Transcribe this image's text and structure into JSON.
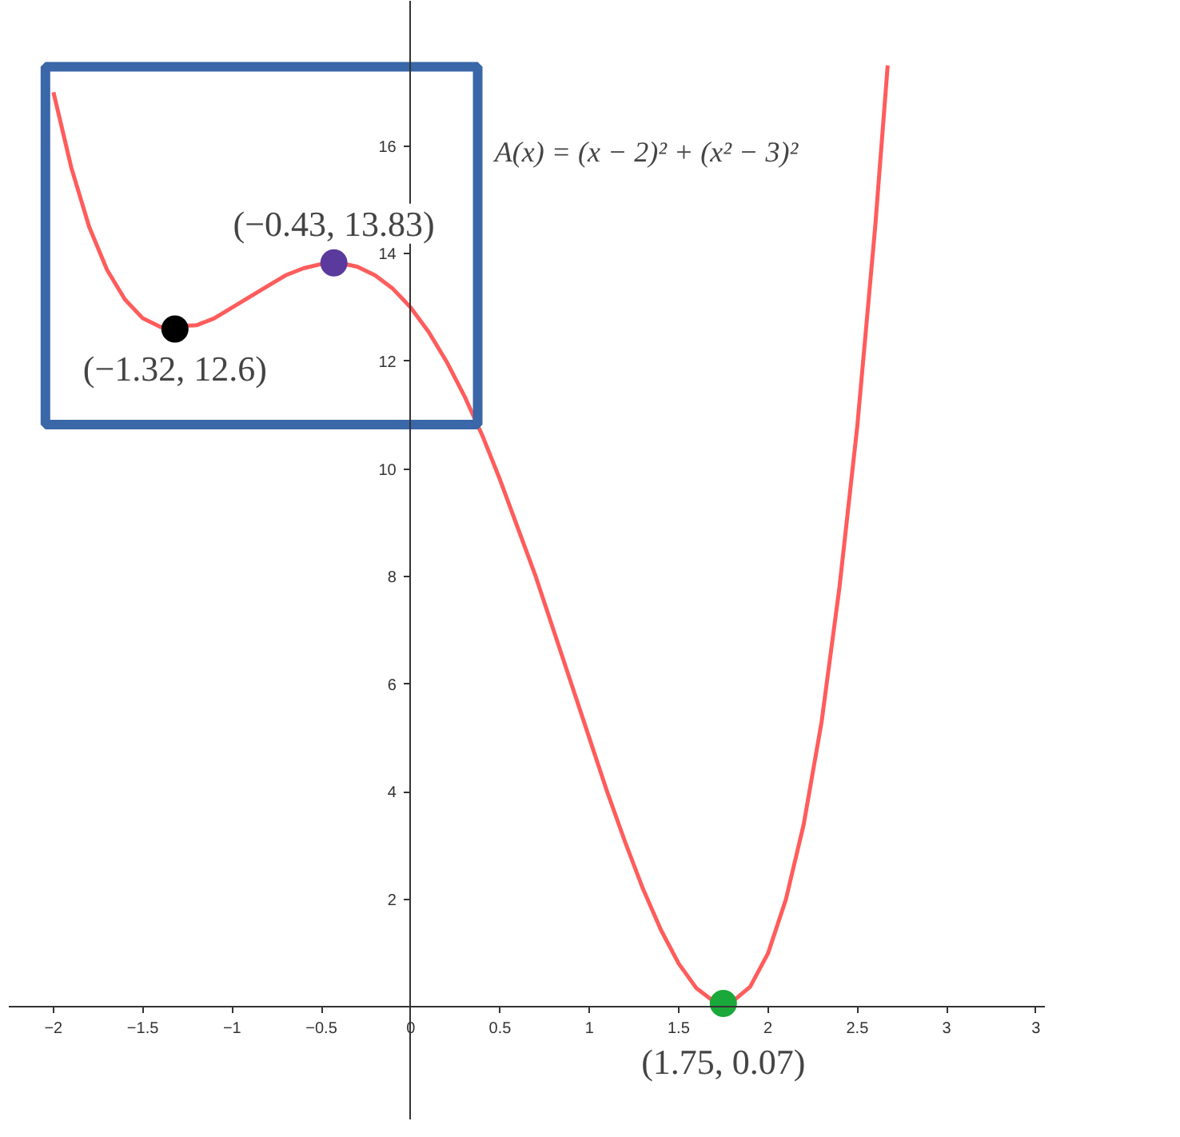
{
  "chart_data": {
    "type": "line",
    "xlim": [
      -2.25,
      3.55
    ],
    "ylim": [
      -2.1,
      18.7
    ],
    "xticks": [
      -2,
      -1.5,
      -1,
      -0.5,
      0,
      0.5,
      1,
      1.5,
      2,
      2.5,
      3,
      {
        "value": 3.5,
        "label": "3"
      }
    ],
    "yticks": [
      2,
      4,
      6,
      8,
      10,
      12,
      14,
      16
    ],
    "grid": false,
    "series": [
      {
        "color": "#ff5c5c",
        "marker": "none",
        "line_style": "solid",
        "x": [
          -2,
          -1.9,
          -1.8,
          -1.7,
          -1.6,
          -1.5,
          -1.4,
          -1.2,
          -1.1,
          -1,
          -0.9,
          -0.8,
          -0.7,
          -0.6,
          -0.5,
          -0.4,
          -0.3,
          -0.2,
          -0.1,
          0,
          0.1,
          0.2,
          0.3,
          0.4,
          0.5,
          0.6,
          0.7,
          0.8,
          0.9,
          1,
          1.1,
          1.2,
          1.3,
          1.4,
          1.5,
          1.6,
          1.7,
          1.8,
          1.9,
          2,
          2.1,
          2.2,
          2.3,
          2.4,
          2.5,
          2.6,
          2.67
        ],
        "values": [
          17.0,
          15.6,
          14.5,
          13.7,
          13.15,
          12.8,
          12.64,
          12.67,
          12.8,
          13.0,
          13.2,
          13.4,
          13.6,
          13.73,
          13.81,
          13.83,
          13.76,
          13.6,
          13.35,
          13.0,
          12.55,
          12.0,
          11.36,
          10.63,
          9.8,
          8.9,
          8.0,
          7.0,
          6.0,
          5.0,
          4.0,
          3.07,
          2.2,
          1.44,
          0.81,
          0.35,
          0.1,
          0.1,
          0.38,
          1.0,
          2.0,
          3.4,
          5.3,
          7.8,
          10.8,
          14.5,
          17.5
        ]
      },
      {
        "type": "scatter",
        "marker": "circle",
        "x": [
          -1.32,
          -0.43,
          1.75
        ],
        "values": [
          12.6,
          13.83,
          0.07
        ],
        "colors": [
          "#000000",
          "#5b3a9e",
          "#1aa83a"
        ]
      }
    ],
    "annotations": [
      {
        "text": "(−1.32, 12.6)",
        "x": -1.32,
        "y": 12.6
      },
      {
        "text": "(−0.43, 13.83)",
        "x": -0.43,
        "y": 13.83
      },
      {
        "text": "(1.75, 0.07)",
        "x": 1.75,
        "y": 0.07
      },
      "A(x) = (x − 2)² + (x² − 3)²"
    ]
  }
}
